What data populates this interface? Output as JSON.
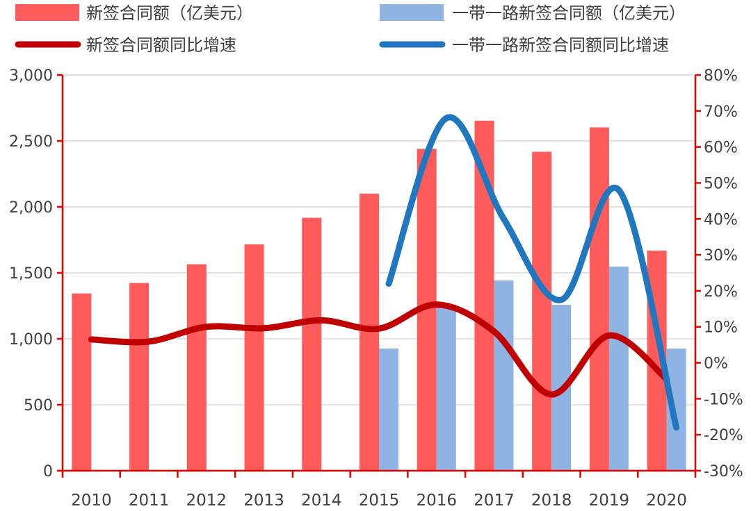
{
  "chart_data": {
    "type": "bar",
    "categories": [
      "2010",
      "2011",
      "2012",
      "2013",
      "2014",
      "2015",
      "2016",
      "2017",
      "2018",
      "2019",
      "2020"
    ],
    "series": [
      {
        "name": "新签合同额（亿美元）",
        "kind": "bar",
        "axis": "left",
        "color": "#FF5B5B",
        "values": [
          1344,
          1423,
          1565,
          1716,
          1918,
          2101,
          2440,
          2653,
          2418,
          2603,
          1669
        ]
      },
      {
        "name": "一带一路新签合同额（亿美元）",
        "kind": "bar",
        "axis": "left",
        "color": "#8FB4E3",
        "values": [
          null,
          null,
          null,
          null,
          null,
          926,
          1260,
          1443,
          1258,
          1548,
          926
        ]
      },
      {
        "name": "新签合同额同比增速",
        "kind": "line",
        "axis": "right",
        "color": "#C00000",
        "values": [
          6.5,
          5.9,
          10.0,
          9.6,
          11.8,
          9.5,
          16.2,
          8.7,
          -8.8,
          7.6,
          -4.5
        ]
      },
      {
        "name": "一带一路新签合同额同比增速",
        "kind": "line",
        "axis": "right",
        "color": "#1F77C0",
        "values": [
          null,
          null,
          null,
          null,
          null,
          22.0,
          68.0,
          40.0,
          17.5,
          48.0,
          -18.0
        ]
      }
    ],
    "yleft": {
      "min": 0,
      "max": 3000,
      "step": 500,
      "tick_labels": [
        "0",
        "500",
        "1,000",
        "1,500",
        "2,000",
        "2,500",
        "3,000"
      ]
    },
    "yright": {
      "min": -30,
      "max": 80,
      "step": 10,
      "tick_labels": [
        "-30%",
        "-20%",
        "-10%",
        "0%",
        "10%",
        "20%",
        "30%",
        "40%",
        "50%",
        "60%",
        "70%",
        "80%"
      ]
    },
    "grid": "horizontal",
    "legend_position": "top"
  }
}
